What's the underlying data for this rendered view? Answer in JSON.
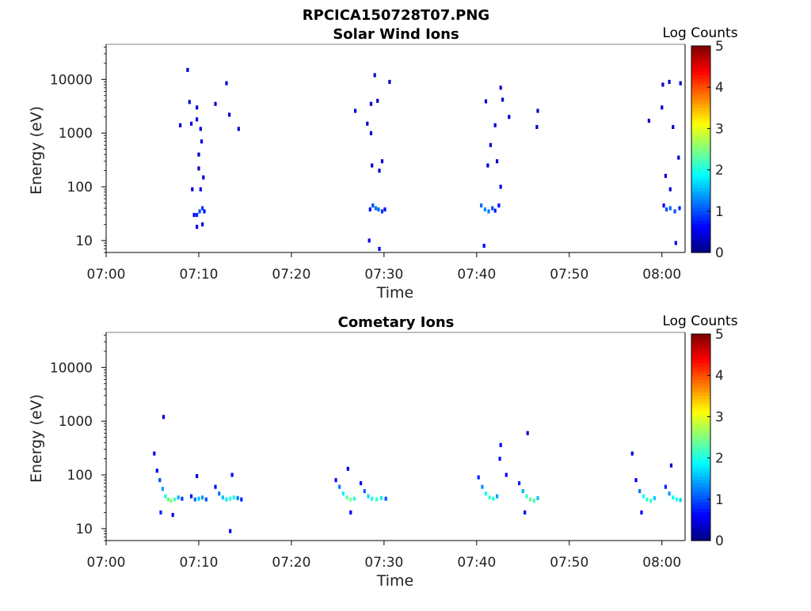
{
  "figure_title": "RPCICA150728T07.PNG",
  "chart_data": [
    {
      "type": "heatmap",
      "title": "Solar Wind Ions",
      "xlabel": "Time",
      "ylabel": "Energy (eV)",
      "x_ticks": [
        "07:00",
        "07:10",
        "07:20",
        "07:30",
        "07:40",
        "07:50",
        "08:00"
      ],
      "x_range_minutes": [
        0,
        62.5
      ],
      "y_scale": "log",
      "y_ticks": [
        "10",
        "100",
        "1000",
        "10000"
      ],
      "y_range": [
        6,
        45000
      ],
      "colorbar": {
        "label": "Log Counts",
        "range": [
          0,
          5
        ],
        "ticks": [
          "0",
          "1",
          "2",
          "3",
          "4",
          "5"
        ],
        "colormap": "jet"
      },
      "cells": [
        [
          9.5,
          30,
          0.6
        ],
        [
          9.8,
          30,
          0.8
        ],
        [
          10.1,
          35,
          1.0
        ],
        [
          10.4,
          40,
          0.9
        ],
        [
          10.6,
          35,
          0.7
        ],
        [
          9.8,
          18,
          0.5
        ],
        [
          10.4,
          20,
          0.5
        ],
        [
          9.2,
          1500,
          0.5
        ],
        [
          9.8,
          1800,
          0.6
        ],
        [
          10.2,
          1200,
          0.5
        ],
        [
          8.8,
          15000,
          0.4
        ],
        [
          9.0,
          3800,
          0.5
        ],
        [
          9.8,
          3000,
          0.4
        ],
        [
          10.0,
          400,
          0.4
        ],
        [
          10.3,
          700,
          0.5
        ],
        [
          10.5,
          150,
          0.4
        ],
        [
          10.2,
          90,
          0.5
        ],
        [
          9.3,
          90,
          0.4
        ],
        [
          13.0,
          8500,
          0.4
        ],
        [
          11.8,
          3500,
          0.4
        ],
        [
          14.3,
          1200,
          0.4
        ],
        [
          13.3,
          2200,
          0.4
        ],
        [
          8.0,
          1400,
          0.4
        ],
        [
          10.0,
          220,
          0.4
        ],
        [
          28.5,
          38,
          0.7
        ],
        [
          28.8,
          45,
          1.0
        ],
        [
          29.1,
          40,
          1.2
        ],
        [
          29.4,
          38,
          1.1
        ],
        [
          29.8,
          35,
          0.9
        ],
        [
          30.1,
          38,
          0.7
        ],
        [
          28.4,
          10,
          0.5
        ],
        [
          29.5,
          7,
          0.5
        ],
        [
          29.0,
          12000,
          0.4
        ],
        [
          30.6,
          9000,
          0.4
        ],
        [
          28.6,
          3500,
          0.4
        ],
        [
          29.3,
          4000,
          0.4
        ],
        [
          26.9,
          2600,
          0.4
        ],
        [
          28.2,
          1500,
          0.4
        ],
        [
          28.6,
          1000,
          0.4
        ],
        [
          29.8,
          300,
          0.4
        ],
        [
          28.7,
          250,
          0.4
        ],
        [
          29.5,
          200,
          0.4
        ],
        [
          40.5,
          45,
          1.1
        ],
        [
          40.9,
          38,
          1.3
        ],
        [
          41.3,
          35,
          1.2
        ],
        [
          41.7,
          40,
          1.0
        ],
        [
          42.0,
          36,
          0.8
        ],
        [
          42.4,
          45,
          0.7
        ],
        [
          40.8,
          8,
          0.6
        ],
        [
          42.6,
          7000,
          0.4
        ],
        [
          41.0,
          3900,
          0.4
        ],
        [
          42.8,
          4200,
          0.4
        ],
        [
          42.0,
          1400,
          0.4
        ],
        [
          43.5,
          2000,
          0.4
        ],
        [
          41.5,
          600,
          0.4
        ],
        [
          42.2,
          300,
          0.4
        ],
        [
          41.2,
          250,
          0.4
        ],
        [
          42.6,
          100,
          0.5
        ],
        [
          46.5,
          1300,
          0.4
        ],
        [
          46.6,
          2600,
          0.4
        ],
        [
          60.2,
          45,
          0.6
        ],
        [
          60.5,
          38,
          1.0
        ],
        [
          60.9,
          40,
          1.1
        ],
        [
          61.4,
          35,
          1.0
        ],
        [
          61.9,
          40,
          0.8
        ],
        [
          60.1,
          8000,
          0.4
        ],
        [
          60.8,
          9000,
          0.4
        ],
        [
          62.0,
          8500,
          0.4
        ],
        [
          60.0,
          3000,
          0.4
        ],
        [
          61.2,
          1300,
          0.4
        ],
        [
          61.8,
          350,
          0.4
        ],
        [
          58.6,
          1700,
          0.4
        ],
        [
          60.4,
          160,
          0.4
        ],
        [
          60.9,
          90,
          0.4
        ],
        [
          61.5,
          9,
          0.5
        ]
      ]
    },
    {
      "type": "heatmap",
      "title": "Cometary Ions",
      "xlabel": "Time",
      "ylabel": "Energy (eV)",
      "x_ticks": [
        "07:00",
        "07:10",
        "07:20",
        "07:30",
        "07:40",
        "07:50",
        "08:00"
      ],
      "x_range_minutes": [
        0,
        62.5
      ],
      "y_scale": "log",
      "y_ticks": [
        "10",
        "100",
        "1000",
        "10000"
      ],
      "y_range": [
        6,
        45000
      ],
      "colorbar": {
        "label": "Log Counts",
        "range": [
          0,
          5
        ],
        "ticks": [
          "0",
          "1",
          "2",
          "3",
          "4",
          "5"
        ],
        "colormap": "jet"
      },
      "cells": [
        [
          5.2,
          250,
          0.5
        ],
        [
          5.5,
          120,
          0.6
        ],
        [
          5.8,
          80,
          1.0
        ],
        [
          6.1,
          55,
          1.4
        ],
        [
          6.4,
          40,
          2.0
        ],
        [
          6.7,
          35,
          2.4
        ],
        [
          7.0,
          33,
          2.6
        ],
        [
          7.4,
          35,
          2.2
        ],
        [
          7.8,
          38,
          1.5
        ],
        [
          8.2,
          36,
          0.9
        ],
        [
          6.2,
          1200,
          0.4
        ],
        [
          5.9,
          20,
          0.8
        ],
        [
          7.2,
          18,
          0.6
        ],
        [
          9.2,
          40,
          0.7
        ],
        [
          9.6,
          35,
          1.2
        ],
        [
          10.0,
          36,
          1.6
        ],
        [
          10.4,
          38,
          1.4
        ],
        [
          10.8,
          35,
          1.0
        ],
        [
          9.8,
          95,
          0.4
        ],
        [
          11.8,
          60,
          0.6
        ],
        [
          12.2,
          45,
          1.2
        ],
        [
          12.6,
          38,
          1.6
        ],
        [
          13.0,
          35,
          1.8
        ],
        [
          13.4,
          36,
          2.1
        ],
        [
          13.8,
          38,
          1.9
        ],
        [
          14.2,
          37,
          1.2
        ],
        [
          14.6,
          35,
          0.8
        ],
        [
          13.4,
          9,
          0.5
        ],
        [
          13.6,
          100,
          0.6
        ],
        [
          24.8,
          80,
          0.7
        ],
        [
          25.2,
          60,
          1.2
        ],
        [
          25.6,
          45,
          1.8
        ],
        [
          26.0,
          38,
          2.3
        ],
        [
          26.4,
          35,
          2.5
        ],
        [
          26.8,
          36,
          2.1
        ],
        [
          27.5,
          70,
          0.6
        ],
        [
          27.9,
          50,
          1.1
        ],
        [
          28.3,
          40,
          1.7
        ],
        [
          28.7,
          36,
          2.0
        ],
        [
          29.2,
          35,
          2.2
        ],
        [
          29.7,
          37,
          1.8
        ],
        [
          30.2,
          36,
          1.0
        ],
        [
          26.1,
          130,
          0.5
        ],
        [
          26.4,
          20,
          0.6
        ],
        [
          40.2,
          90,
          0.8
        ],
        [
          40.6,
          60,
          1.3
        ],
        [
          41.0,
          45,
          1.9
        ],
        [
          41.4,
          38,
          2.2
        ],
        [
          41.8,
          36,
          2.0
        ],
        [
          42.2,
          40,
          1.4
        ],
        [
          42.6,
          360,
          0.6
        ],
        [
          42.5,
          200,
          0.7
        ],
        [
          43.2,
          100,
          0.6
        ],
        [
          44.6,
          70,
          0.8
        ],
        [
          45.0,
          50,
          1.5
        ],
        [
          45.4,
          40,
          2.1
        ],
        [
          45.8,
          35,
          2.4
        ],
        [
          46.2,
          33,
          2.2
        ],
        [
          46.6,
          37,
          1.6
        ],
        [
          45.5,
          600,
          0.4
        ],
        [
          45.2,
          20,
          0.6
        ],
        [
          56.8,
          250,
          0.4
        ],
        [
          57.2,
          80,
          0.6
        ],
        [
          57.6,
          50,
          1.2
        ],
        [
          58.0,
          40,
          1.9
        ],
        [
          58.4,
          35,
          2.1
        ],
        [
          58.8,
          33,
          2.2
        ],
        [
          59.2,
          37,
          1.6
        ],
        [
          60.4,
          60,
          0.8
        ],
        [
          60.8,
          45,
          1.4
        ],
        [
          61.2,
          38,
          1.9
        ],
        [
          61.6,
          35,
          2.1
        ],
        [
          62.0,
          34,
          1.7
        ],
        [
          57.8,
          20,
          0.6
        ],
        [
          61.0,
          150,
          0.4
        ]
      ]
    }
  ]
}
